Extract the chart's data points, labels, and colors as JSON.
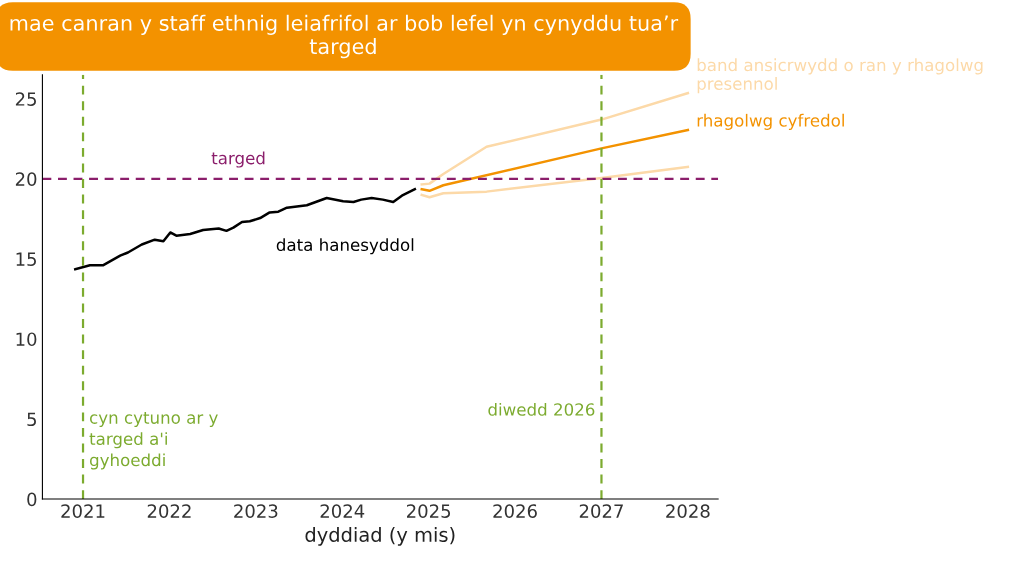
{
  "chart_data": {
    "type": "line",
    "title": "mae canran y staff ethnig leiafrifol ar bob lefel yn cynyddu tua’r targed",
    "xlabel": "dyddiad (y mis)",
    "xlim": [
      2020.53,
      2028.35
    ],
    "xticks": [
      2021,
      2022,
      2023,
      2024,
      2025,
      2026,
      2027,
      2028
    ],
    "ylim": [
      0,
      26.5
    ],
    "yticks": [
      0,
      5,
      10,
      15,
      20,
      25
    ],
    "grid": false,
    "line_style": "solid",
    "marker": "none",
    "series": [
      {
        "name": "data hanesyddol",
        "color": "#000000",
        "x": [
          2020.91,
          2021.08,
          2021.23,
          2021.43,
          2021.52,
          2021.68,
          2021.83,
          2021.93,
          2022.01,
          2022.08,
          2022.24,
          2022.39,
          2022.57,
          2022.66,
          2022.74,
          2022.84,
          2022.93,
          2023.05,
          2023.16,
          2023.26,
          2023.36,
          2023.59,
          2023.82,
          2024.01,
          2024.13,
          2024.22,
          2024.34,
          2024.47,
          2024.59,
          2024.69,
          2024.84
        ],
        "values": [
          14.35,
          14.6,
          14.6,
          15.2,
          15.4,
          15.9,
          16.2,
          16.1,
          16.65,
          16.45,
          16.55,
          16.8,
          16.9,
          16.75,
          16.95,
          17.3,
          17.35,
          17.55,
          17.9,
          17.95,
          18.2,
          18.35,
          18.8,
          18.6,
          18.55,
          18.7,
          18.8,
          18.7,
          18.55,
          18.95,
          19.35
        ]
      },
      {
        "name": "band ansicrwydd o ran y rhagolwg presennol",
        "color": "#fcd9a8",
        "x": [
          2024.92,
          2025.01,
          2025.17,
          2025.67,
          2027.0,
          2028.0
        ],
        "values": [
          19.65,
          19.7,
          20.3,
          22.0,
          23.7,
          25.35
        ]
      },
      {
        "color": "#fcd9a8",
        "x": [
          2024.92,
          2025.01,
          2025.17,
          2025.67,
          2027.0,
          2028.0
        ],
        "values": [
          19.0,
          18.85,
          19.1,
          19.2,
          20.05,
          20.75
        ]
      },
      {
        "name": "rhagolwg cyfredol",
        "color": "#f39200",
        "x": [
          2024.92,
          2025.01,
          2025.17,
          2027.0,
          2028.0
        ],
        "values": [
          19.35,
          19.25,
          19.6,
          21.9,
          23.05
        ]
      }
    ],
    "ref_lines": [
      {
        "axis": "y",
        "value": 20,
        "label": "targed",
        "color": "#8b1e6b",
        "line_style": "dashed"
      },
      {
        "axis": "x",
        "value": 2021,
        "label": "cyn cytuno ar y\ntarged a'i\ngyhoeddi",
        "color": "#7cab2f",
        "line_style": "dashed"
      },
      {
        "axis": "x",
        "value": 2027,
        "label": "diwedd 2026",
        "color": "#7cab2f",
        "line_style": "dashed"
      }
    ]
  }
}
